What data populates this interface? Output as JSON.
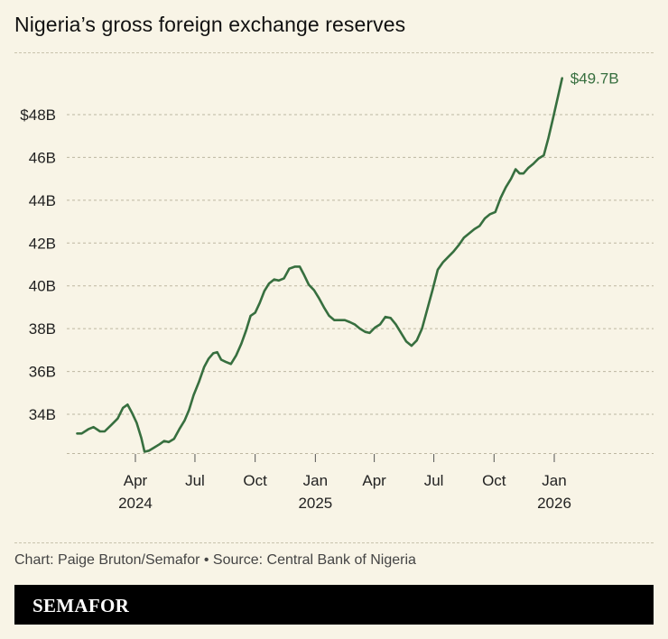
{
  "chart_data": {
    "type": "line",
    "title": "Nigeria’s gross foreign exchange reserves",
    "xlabel": "",
    "ylabel": "",
    "ylim": [
      32.3,
      50.5
    ],
    "grid": true,
    "y_ticks": [
      {
        "value": 34,
        "label": "34B"
      },
      {
        "value": 36,
        "label": "36B"
      },
      {
        "value": 38,
        "label": "38B"
      },
      {
        "value": 40,
        "label": "40B"
      },
      {
        "value": 42,
        "label": "42B"
      },
      {
        "value": 44,
        "label": "44B"
      },
      {
        "value": 46,
        "label": "46B"
      },
      {
        "value": 48,
        "label": "$48B"
      }
    ],
    "x_ticks": [
      {
        "date": "2024-04-01",
        "label": "Apr",
        "year": "2024"
      },
      {
        "date": "2024-07-01",
        "label": "Jul",
        "year": ""
      },
      {
        "date": "2024-10-01",
        "label": "Oct",
        "year": ""
      },
      {
        "date": "2025-01-01",
        "label": "Jan",
        "year": "2025"
      },
      {
        "date": "2025-04-01",
        "label": "Apr",
        "year": ""
      },
      {
        "date": "2025-07-01",
        "label": "Jul",
        "year": ""
      },
      {
        "date": "2025-10-01",
        "label": "Oct",
        "year": ""
      },
      {
        "date": "2026-01-01",
        "label": "Jan",
        "year": "2026"
      }
    ],
    "series": [
      {
        "color": "#376f3f",
        "points": [
          [
            "2024-01-03",
            33.1
          ],
          [
            "2024-01-10",
            33.1
          ],
          [
            "2024-01-20",
            33.3
          ],
          [
            "2024-01-28",
            33.4
          ],
          [
            "2024-02-07",
            33.2
          ],
          [
            "2024-02-14",
            33.2
          ],
          [
            "2024-02-24",
            33.5
          ],
          [
            "2024-03-05",
            33.8
          ],
          [
            "2024-03-13",
            34.3
          ],
          [
            "2024-03-20",
            34.45
          ],
          [
            "2024-03-27",
            34.05
          ],
          [
            "2024-04-03",
            33.6
          ],
          [
            "2024-04-10",
            32.9
          ],
          [
            "2024-04-15",
            32.25
          ],
          [
            "2024-04-22",
            32.3
          ],
          [
            "2024-04-30",
            32.45
          ],
          [
            "2024-05-08",
            32.6
          ],
          [
            "2024-05-15",
            32.75
          ],
          [
            "2024-05-22",
            32.7
          ],
          [
            "2024-05-30",
            32.85
          ],
          [
            "2024-06-07",
            33.3
          ],
          [
            "2024-06-15",
            33.7
          ],
          [
            "2024-06-22",
            34.2
          ],
          [
            "2024-06-29",
            34.9
          ],
          [
            "2024-07-07",
            35.5
          ],
          [
            "2024-07-15",
            36.2
          ],
          [
            "2024-07-22",
            36.6
          ],
          [
            "2024-07-29",
            36.85
          ],
          [
            "2024-08-04",
            36.9
          ],
          [
            "2024-08-10",
            36.55
          ],
          [
            "2024-08-17",
            36.45
          ],
          [
            "2024-08-25",
            36.35
          ],
          [
            "2024-09-02",
            36.75
          ],
          [
            "2024-09-10",
            37.3
          ],
          [
            "2024-09-17",
            37.9
          ],
          [
            "2024-09-24",
            38.6
          ],
          [
            "2024-10-01",
            38.75
          ],
          [
            "2024-10-08",
            39.2
          ],
          [
            "2024-10-15",
            39.75
          ],
          [
            "2024-10-22",
            40.1
          ],
          [
            "2024-10-30",
            40.3
          ],
          [
            "2024-11-06",
            40.25
          ],
          [
            "2024-11-14",
            40.35
          ],
          [
            "2024-11-22",
            40.8
          ],
          [
            "2024-12-01",
            40.9
          ],
          [
            "2024-12-08",
            40.9
          ],
          [
            "2024-12-15",
            40.5
          ],
          [
            "2024-12-22",
            40.05
          ],
          [
            "2024-12-30",
            39.8
          ],
          [
            "2025-01-06",
            39.45
          ],
          [
            "2025-01-14",
            39.0
          ],
          [
            "2025-01-22",
            38.6
          ],
          [
            "2025-01-30",
            38.4
          ],
          [
            "2025-02-07",
            38.4
          ],
          [
            "2025-02-15",
            38.4
          ],
          [
            "2025-02-23",
            38.3
          ],
          [
            "2025-03-02",
            38.2
          ],
          [
            "2025-03-10",
            38.0
          ],
          [
            "2025-03-18",
            37.85
          ],
          [
            "2025-03-25",
            37.8
          ],
          [
            "2025-04-02",
            38.05
          ],
          [
            "2025-04-10",
            38.2
          ],
          [
            "2025-04-18",
            38.55
          ],
          [
            "2025-04-26",
            38.5
          ],
          [
            "2025-05-04",
            38.2
          ],
          [
            "2025-05-12",
            37.8
          ],
          [
            "2025-05-20",
            37.4
          ],
          [
            "2025-05-28",
            37.2
          ],
          [
            "2025-06-05",
            37.45
          ],
          [
            "2025-06-13",
            38.0
          ],
          [
            "2025-06-21",
            38.9
          ],
          [
            "2025-06-29",
            39.8
          ],
          [
            "2025-07-07",
            40.75
          ],
          [
            "2025-07-15",
            41.1
          ],
          [
            "2025-07-23",
            41.35
          ],
          [
            "2025-07-31",
            41.6
          ],
          [
            "2025-08-08",
            41.9
          ],
          [
            "2025-08-16",
            42.25
          ],
          [
            "2025-08-24",
            42.45
          ],
          [
            "2025-09-01",
            42.65
          ],
          [
            "2025-09-09",
            42.8
          ],
          [
            "2025-09-17",
            43.15
          ],
          [
            "2025-09-25",
            43.35
          ],
          [
            "2025-10-03",
            43.45
          ],
          [
            "2025-10-11",
            44.1
          ],
          [
            "2025-10-19",
            44.6
          ],
          [
            "2025-10-27",
            45.0
          ],
          [
            "2025-11-03",
            45.45
          ],
          [
            "2025-11-09",
            45.25
          ],
          [
            "2025-11-15",
            45.25
          ],
          [
            "2025-11-22",
            45.5
          ],
          [
            "2025-11-30",
            45.7
          ],
          [
            "2025-12-08",
            45.95
          ],
          [
            "2025-12-16",
            46.1
          ],
          [
            "2025-12-23",
            46.9
          ],
          [
            "2025-12-30",
            47.8
          ],
          [
            "2026-01-07",
            48.9
          ],
          [
            "2026-01-13",
            49.7
          ]
        ]
      }
    ],
    "end_label": "$49.7B"
  },
  "footer": {
    "credit": "Chart: Paige Bruton/Semafor • Source: Central Bank of Nigeria",
    "brand": "SEMAFOR"
  }
}
